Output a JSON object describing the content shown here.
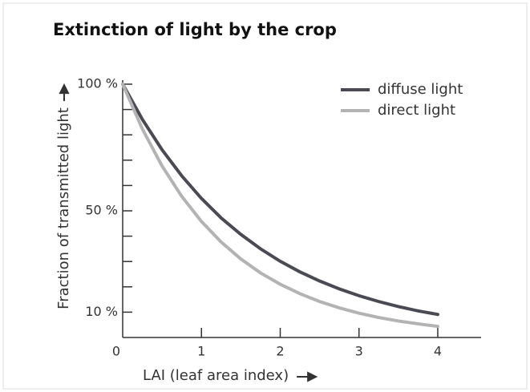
{
  "chart_data": {
    "type": "line",
    "title": "Extinction of light by the crop",
    "xlabel": "LAI (leaf area index)",
    "ylabel": "Fraction of transmitted light",
    "x": [
      0,
      0.25,
      0.5,
      0.75,
      1,
      1.25,
      1.5,
      1.75,
      2,
      2.25,
      2.5,
      2.75,
      3,
      3.25,
      3.5,
      3.75,
      4
    ],
    "series": [
      {
        "name": "diffuse light",
        "color": "#4a4a54",
        "values": [
          100,
          86.1,
          74.1,
          63.8,
          54.9,
          47.2,
          40.7,
          35.0,
          30.1,
          25.9,
          22.3,
          19.2,
          16.5,
          14.2,
          12.2,
          10.5,
          9.1
        ]
      },
      {
        "name": "direct light",
        "color": "#b3b3b3",
        "values": [
          100,
          82.3,
          67.7,
          55.7,
          45.8,
          37.7,
          31.0,
          25.5,
          21.0,
          17.3,
          14.2,
          11.7,
          9.6,
          7.9,
          6.5,
          5.4,
          4.4
        ]
      }
    ],
    "xlim": [
      0,
      4.55
    ],
    "ylim": [
      0,
      100
    ],
    "xticks": [
      0,
      1,
      2,
      3,
      4
    ],
    "yticks": [
      {
        "value": 10,
        "label": "10 %"
      },
      {
        "value": 50,
        "label": "50 %"
      },
      {
        "value": 100,
        "label": "100 %"
      }
    ],
    "yminorticks": [
      20,
      30,
      40,
      60,
      70,
      80,
      90
    ],
    "legend": "upper right"
  }
}
